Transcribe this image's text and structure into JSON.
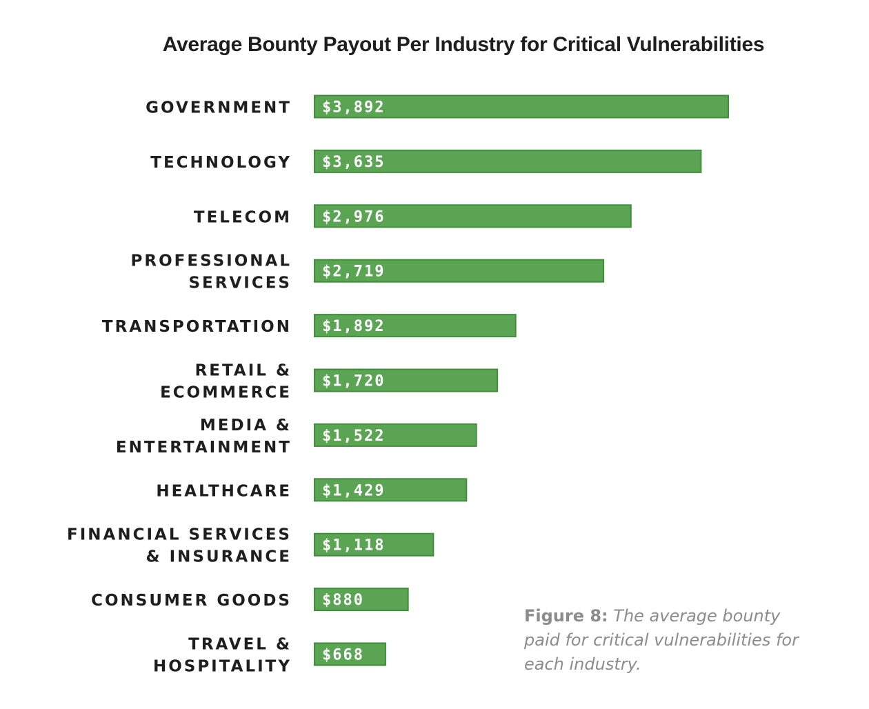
{
  "chart_data": {
    "type": "bar",
    "orientation": "horizontal",
    "title": "Average Bounty Payout Per Industry for Critical Vulnerabilities",
    "xlabel": "",
    "ylabel": "",
    "xlim": [
      0,
      4000
    ],
    "grid": false,
    "categories": [
      [
        "GOVERNMENT"
      ],
      [
        "TECHNOLOGY"
      ],
      [
        "TELECOM"
      ],
      [
        "PROFESSIONAL",
        "SERVICES"
      ],
      [
        "TRANSPORTATION"
      ],
      [
        "RETAIL &",
        "ECOMMERCE"
      ],
      [
        "MEDIA &",
        "ENTERTAINMENT"
      ],
      [
        "HEALTHCARE"
      ],
      [
        "FINANCIAL SERVICES",
        "& INSURANCE"
      ],
      [
        "CONSUMER GOODS"
      ],
      [
        "TRAVEL &",
        "HOSPITALITY"
      ]
    ],
    "values": [
      3892,
      3635,
      2976,
      2719,
      1892,
      1720,
      1522,
      1429,
      1118,
      880,
      668
    ],
    "value_labels": [
      "$3,892",
      "$3,635",
      "$2,976",
      "$2,719",
      "$1,892",
      "$1,720",
      "$1,522",
      "$1,429",
      "$1,118",
      "$880",
      "$668"
    ],
    "bar_color": "#5aa453"
  },
  "caption": {
    "figure_number": "Figure 8:",
    "text": " The average bounty paid for critical vulnerabilities for each industry."
  }
}
